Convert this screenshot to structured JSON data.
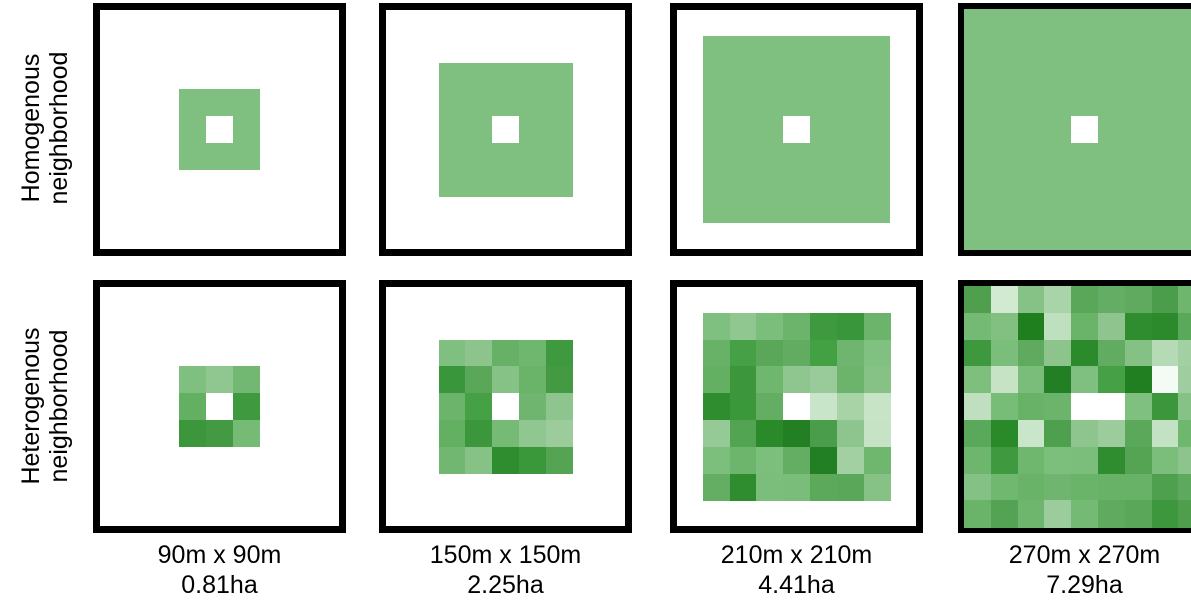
{
  "rows": [
    {
      "label_line1": "Homogenous",
      "label_line2": "neighborhood"
    },
    {
      "label_line1": "Heterogenous",
      "label_line2": "neighborhood"
    }
  ],
  "columns": [
    {
      "size_label": "90m x 90m",
      "area_label": "0.81ha",
      "grid": 3
    },
    {
      "size_label": "150m x 150m",
      "area_label": "2.25ha",
      "grid": 5
    },
    {
      "size_label": "210m x 210m",
      "area_label": "4.41ha",
      "grid": 7
    },
    {
      "size_label": "270m x 270m",
      "area_label": "7.29ha",
      "grid": 9
    }
  ],
  "colors": {
    "homogeneous_fill": "#7fbf7f",
    "center_cell": "#ffffff",
    "border": "#000000"
  },
  "heterogeneous_shades": [
    [
      "#7fbf7f",
      "#90c690",
      "#72b872"
    ],
    [
      "#63b063",
      "#ffffff",
      "#3f9a3f"
    ],
    [
      "#3c963c",
      "#439a43",
      "#75ba75"
    ]
  ]
}
